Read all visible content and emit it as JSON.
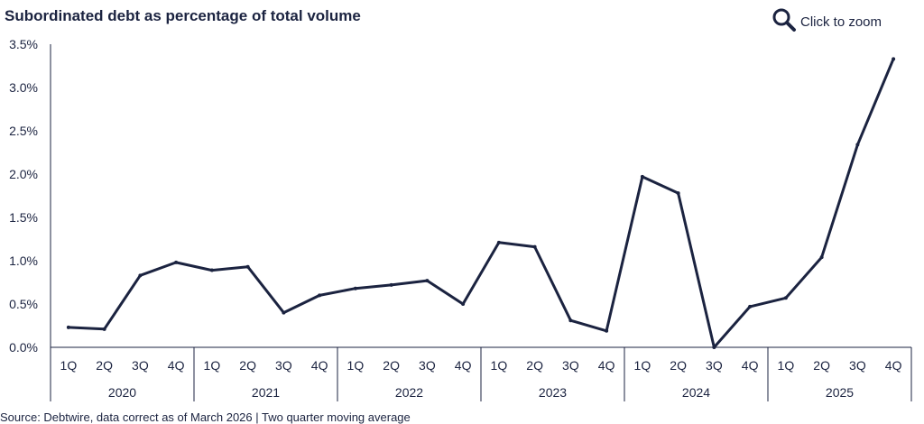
{
  "header": {
    "title": "Subordinated debt as percentage of total volume",
    "zoom_label": "Click to zoom"
  },
  "footer": {
    "source": "Source: Debtwire, data correct as of March 2026 | Two quarter moving average"
  },
  "colors": {
    "line": "#1b2340",
    "axis": "#1b2340"
  },
  "icons": {
    "zoom": "magnifier-icon"
  },
  "chart_data": {
    "type": "line",
    "title": "Subordinated debt as percentage of total volume",
    "xlabel": "",
    "ylabel": "",
    "ylim": [
      0,
      3.5
    ],
    "yticks": [
      "0.0%",
      "0.5%",
      "1.0%",
      "1.5%",
      "2.0%",
      "2.5%",
      "3.0%",
      "3.5%"
    ],
    "ytick_values": [
      0,
      0.5,
      1.0,
      1.5,
      2.0,
      2.5,
      3.0,
      3.5
    ],
    "quarters": [
      "1Q",
      "2Q",
      "3Q",
      "4Q"
    ],
    "years": [
      "2020",
      "2021",
      "2022",
      "2023",
      "2024",
      "2025"
    ],
    "grid": false,
    "legend": "none",
    "values": [
      0.23,
      0.21,
      0.83,
      0.98,
      0.89,
      0.93,
      0.4,
      0.6,
      0.68,
      0.72,
      0.77,
      0.5,
      1.21,
      1.16,
      0.31,
      0.19,
      1.97,
      1.78,
      0.0,
      0.47,
      0.57,
      1.04,
      2.34,
      3.33
    ]
  }
}
